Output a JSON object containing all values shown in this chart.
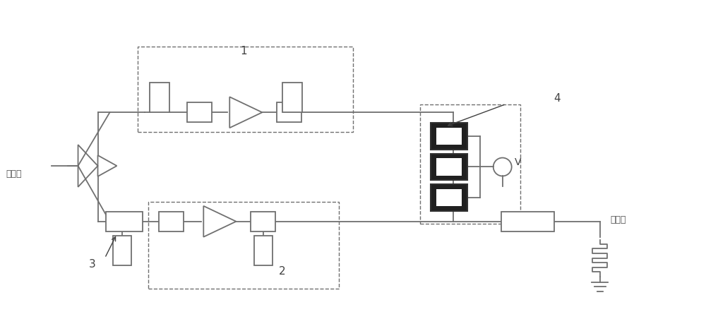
{
  "bg_color": "#ffffff",
  "line_color": "#707070",
  "text_color": "#404040",
  "fig_width": 10.0,
  "fig_height": 4.69,
  "label_zong_input": "总输入",
  "label_zong_output": "总输出",
  "label_1": "1",
  "label_2": "2",
  "label_3": "3",
  "label_4": "4",
  "label_V": "V"
}
